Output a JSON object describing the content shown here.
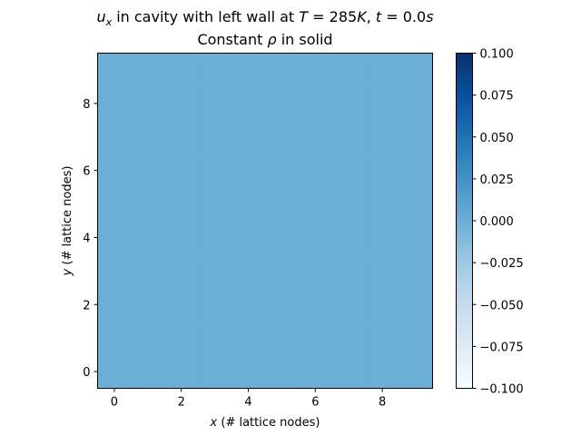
{
  "chart_data": {
    "type": "heatmap",
    "title_line1": {
      "var": "u",
      "sub": "x",
      "text1": " in cavity with left wall at ",
      "T_var": "T",
      "T_eq": " = 285",
      "T_unit": "K",
      "sep": ", ",
      "t_var": "t",
      "t_eq": " = 0.0",
      "t_unit": "s"
    },
    "title_line2": {
      "text1": "Constant ",
      "rho": "ρ",
      "text2": " in solid"
    },
    "xlabel": {
      "var": "x",
      "text": " (# lattice nodes)"
    },
    "ylabel": {
      "var": "y",
      "text": " (# lattice nodes)"
    },
    "x_range": [
      -0.5,
      9.5
    ],
    "y_range": [
      -0.5,
      9.5
    ],
    "x_ticks": [
      0,
      2,
      4,
      6,
      8
    ],
    "y_ticks": [
      0,
      2,
      4,
      6,
      8
    ],
    "grid": {
      "nx": 10,
      "ny": 10,
      "value": 0.0
    },
    "colormap": "Blues",
    "colorbar": {
      "range": [
        -0.1,
        0.1
      ],
      "ticks": [
        0.1,
        0.075,
        0.05,
        0.025,
        0.0,
        -0.025,
        -0.05,
        -0.075,
        -0.1
      ],
      "tick_labels": [
        "0.100",
        "0.075",
        "0.050",
        "0.025",
        "0.000",
        "−0.025",
        "−0.050",
        "−0.075",
        "−0.100"
      ]
    },
    "cell_color": "#6baed6",
    "colorbar_stops": [
      "#f7fbff",
      "#deebf7",
      "#c6dbef",
      "#9ecae1",
      "#6baed6",
      "#4292c6",
      "#2171b5",
      "#08519c",
      "#08306b"
    ]
  }
}
